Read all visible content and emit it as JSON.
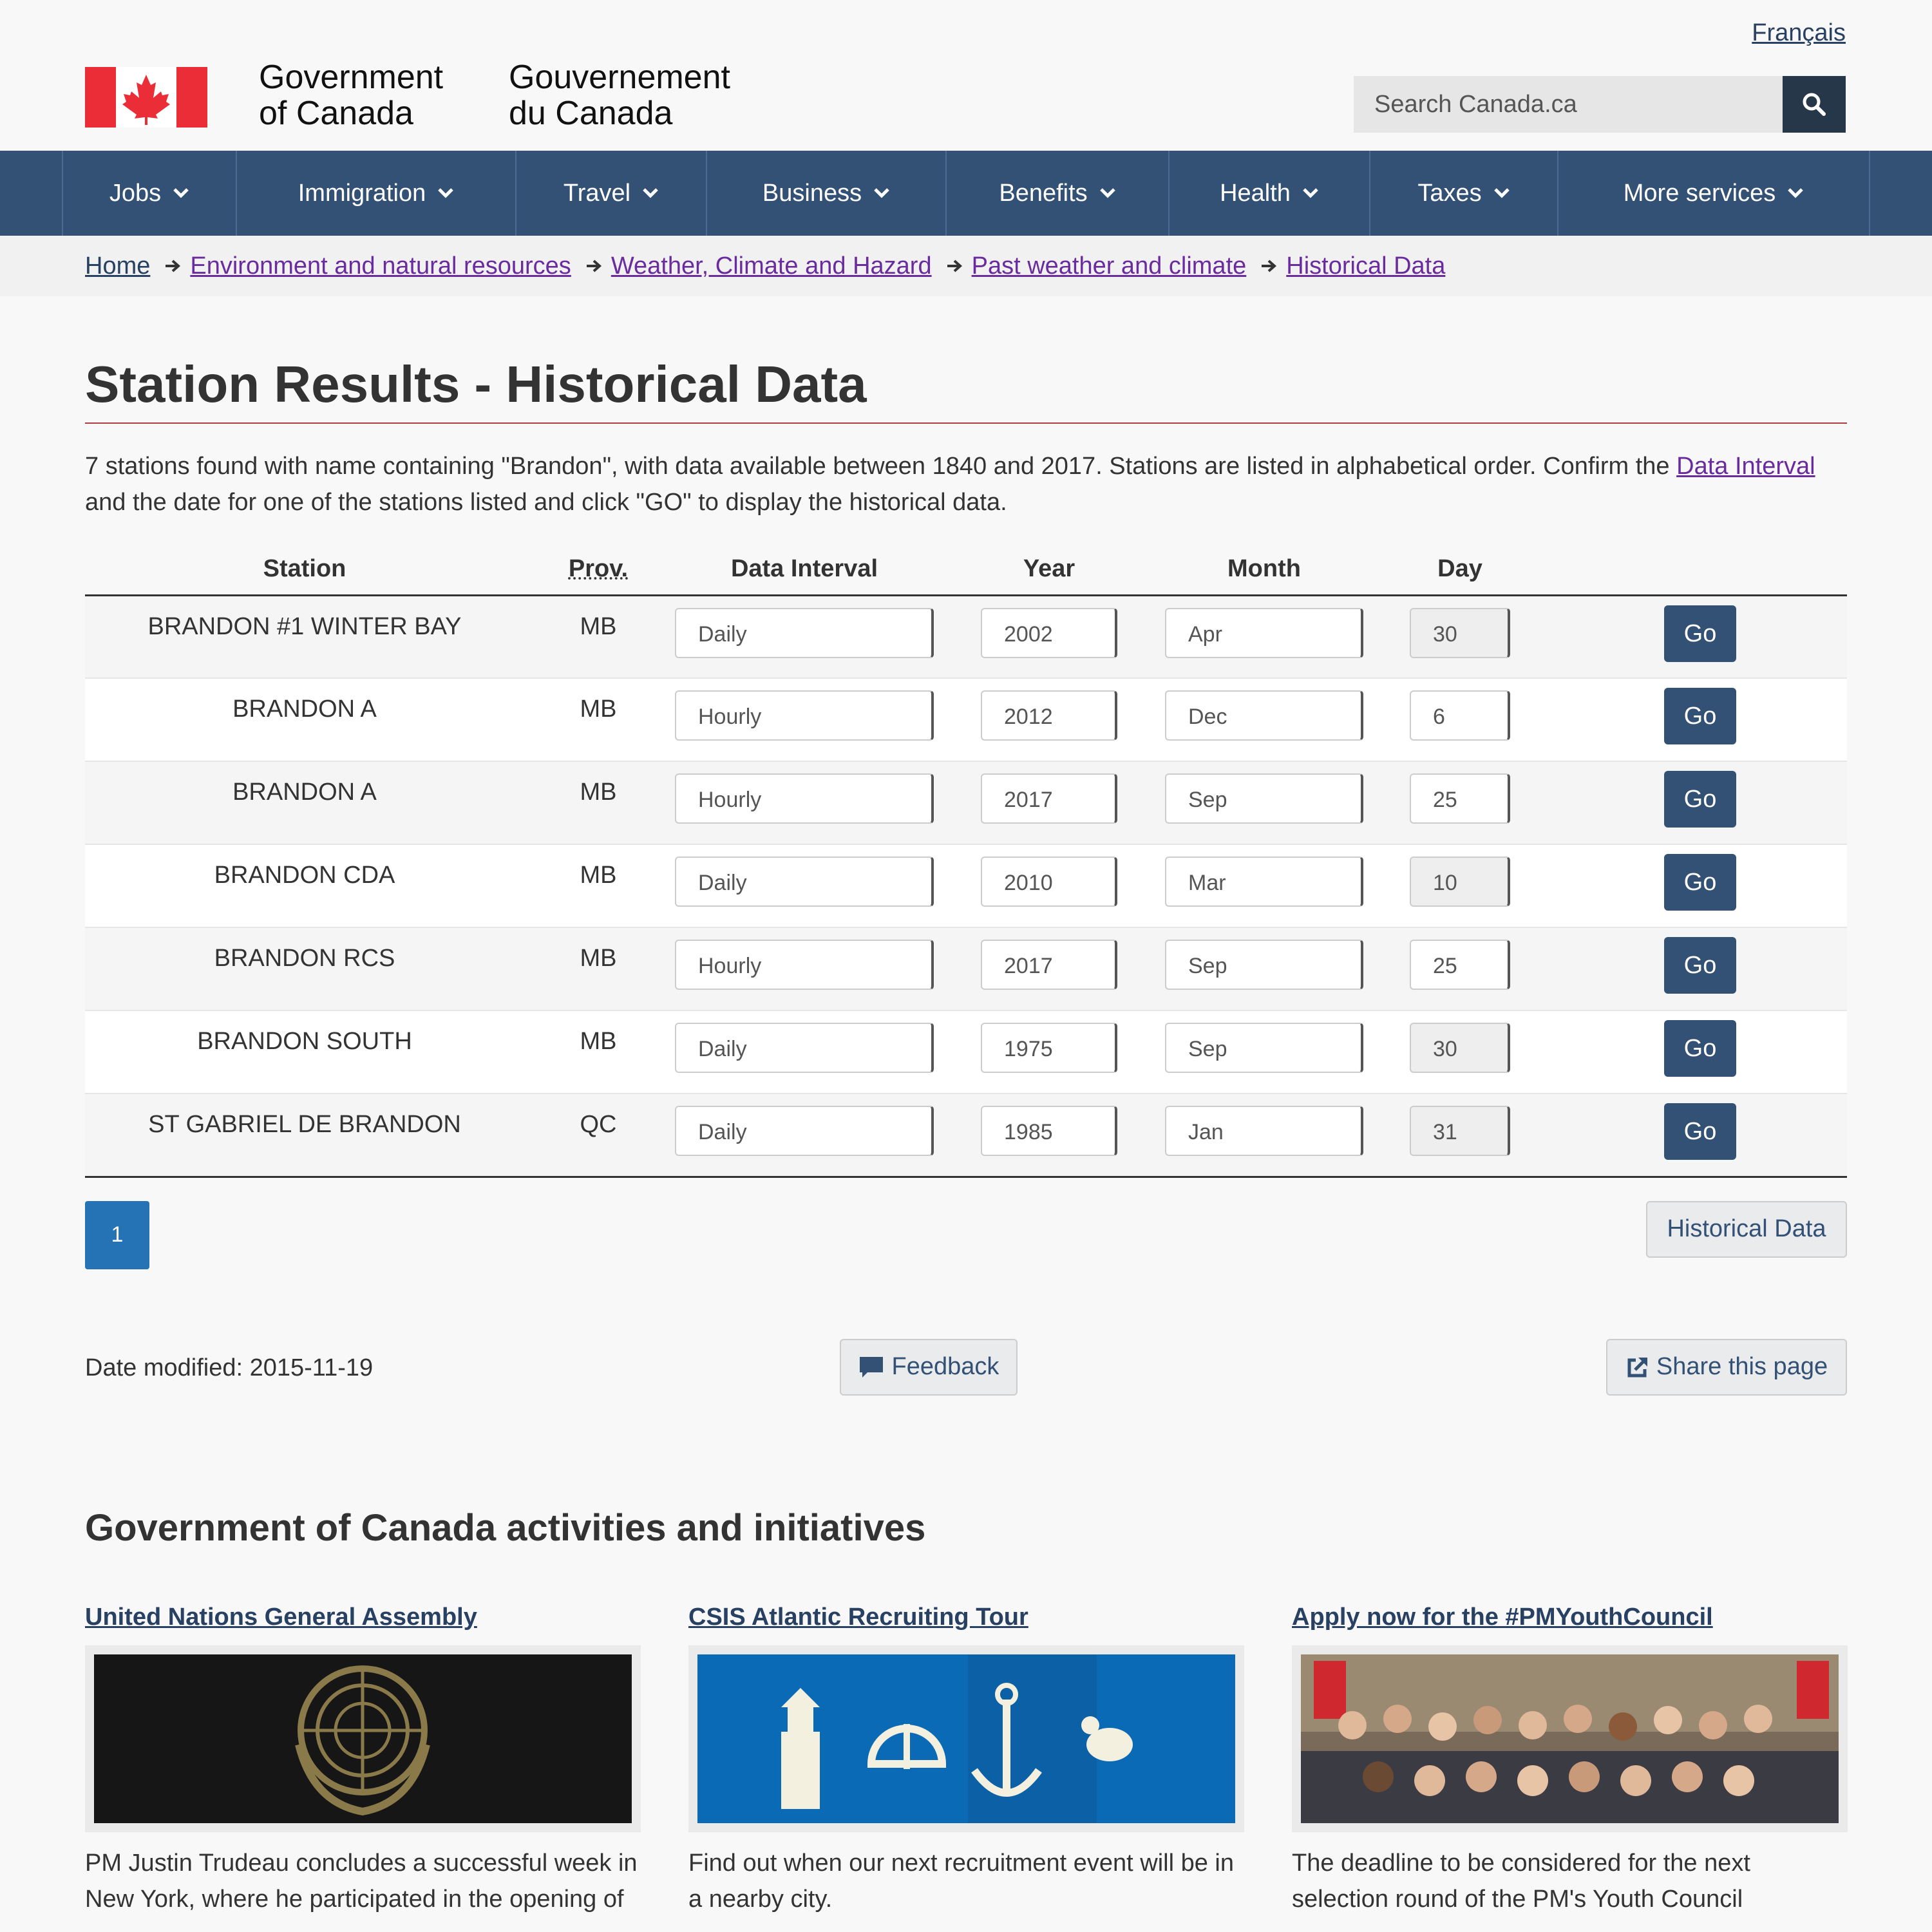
{
  "header": {
    "lang_link": "Français",
    "sig_en_line1": "Government",
    "sig_en_line2": "of Canada",
    "sig_fr_line1": "Gouvernement",
    "sig_fr_line2": "du Canada",
    "search_placeholder": "Search Canada.ca"
  },
  "menu": [
    "Jobs",
    "Immigration",
    "Travel",
    "Business",
    "Benefits",
    "Health",
    "Taxes",
    "More services"
  ],
  "breadcrumb": [
    "Home",
    "Environment and natural resources",
    "Weather, Climate and Hazard",
    "Past weather and climate",
    "Historical Data"
  ],
  "page": {
    "title": "Station Results - Historical Data",
    "intro_before": "7 stations found with name containing \"Brandon\", with data available between 1840 and 2017. Stations are listed in alphabetical order. Confirm the ",
    "intro_link": "Data Interval",
    "intro_after": " and the date for one of the stations listed and click \"GO\" to display the historical data."
  },
  "table": {
    "headers": [
      "Station",
      "Prov.",
      "Data Interval",
      "Year",
      "Month",
      "Day"
    ],
    "go_label": "Go",
    "rows": [
      {
        "station": "BRANDON #1 WINTER BAY",
        "prov": "MB",
        "interval": "Daily",
        "year": "2002",
        "month": "Apr",
        "day": "30"
      },
      {
        "station": "BRANDON A",
        "prov": "MB",
        "interval": "Hourly",
        "year": "2012",
        "month": "Dec",
        "day": "6"
      },
      {
        "station": "BRANDON A",
        "prov": "MB",
        "interval": "Hourly",
        "year": "2017",
        "month": "Sep",
        "day": "25"
      },
      {
        "station": "BRANDON CDA",
        "prov": "MB",
        "interval": "Daily",
        "year": "2010",
        "month": "Mar",
        "day": "10"
      },
      {
        "station": "BRANDON RCS",
        "prov": "MB",
        "interval": "Hourly",
        "year": "2017",
        "month": "Sep",
        "day": "25"
      },
      {
        "station": "BRANDON SOUTH",
        "prov": "MB",
        "interval": "Daily",
        "year": "1975",
        "month": "Sep",
        "day": "30"
      },
      {
        "station": "ST GABRIEL DE BRANDON",
        "prov": "QC",
        "interval": "Daily",
        "year": "1985",
        "month": "Jan",
        "day": "31"
      }
    ]
  },
  "pager": {
    "page": "1",
    "historical_button": "Historical Data"
  },
  "meta": {
    "date_modified": "Date modified: 2015-11-19",
    "feedback": "Feedback",
    "share": "Share this page"
  },
  "activities": {
    "heading": "Government of Canada activities and initiatives",
    "items": [
      {
        "title": "United Nations General Assembly",
        "desc": "PM Justin Trudeau concludes a successful week in New York, where he participated in the opening of"
      },
      {
        "title": "CSIS Atlantic Recruiting Tour",
        "desc": "Find out when our next recruitment event will be in a nearby city."
      },
      {
        "title": "Apply now for the #PMYouthCouncil",
        "desc": "The deadline to be considered for the next selection round of the PM's Youth Council"
      }
    ]
  },
  "colors": {
    "nav": "#335075",
    "accent_red": "#af3c43",
    "go_button": "#335075",
    "page_active": "#2572b4"
  }
}
